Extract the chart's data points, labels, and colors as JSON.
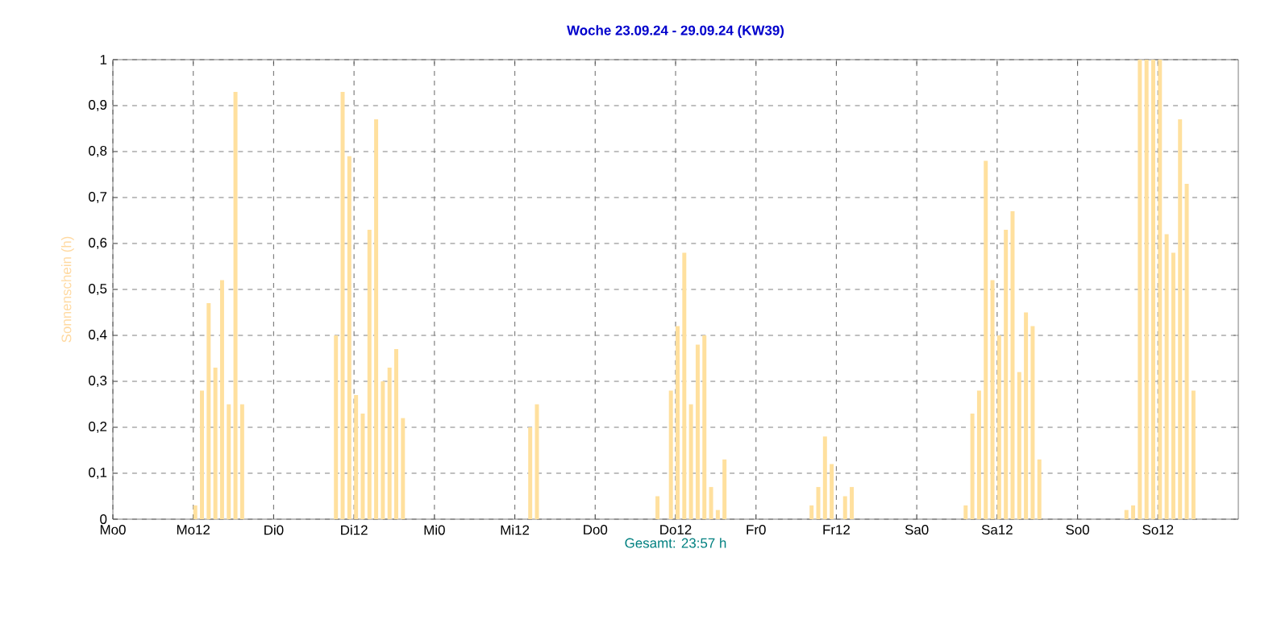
{
  "chart_data": {
    "type": "bar",
    "title": "Woche 23.09.24 - 29.09.24 (KW39)",
    "xlabel": "Gesamt: 23:57 h",
    "ylabel": "Sonnenschein  (h)",
    "categories": [
      "Mo0",
      null,
      null,
      null,
      null,
      null,
      null,
      null,
      null,
      null,
      null,
      null,
      "Mo12",
      null,
      null,
      null,
      null,
      null,
      null,
      null,
      null,
      null,
      null,
      null,
      "Di0",
      null,
      null,
      null,
      null,
      null,
      null,
      null,
      null,
      null,
      null,
      null,
      "Di12",
      null,
      null,
      null,
      null,
      null,
      null,
      null,
      null,
      null,
      null,
      null,
      "Mi0",
      null,
      null,
      null,
      null,
      null,
      null,
      null,
      null,
      null,
      null,
      null,
      "Mi12",
      null,
      null,
      null,
      null,
      null,
      null,
      null,
      null,
      null,
      null,
      null,
      "Do0",
      null,
      null,
      null,
      null,
      null,
      null,
      null,
      null,
      null,
      null,
      null,
      "Do12",
      null,
      null,
      null,
      null,
      null,
      null,
      null,
      null,
      null,
      null,
      null,
      "Fr0",
      null,
      null,
      null,
      null,
      null,
      null,
      null,
      null,
      null,
      null,
      null,
      "Fr12",
      null,
      null,
      null,
      null,
      null,
      null,
      null,
      null,
      null,
      null,
      null,
      "Sa0",
      null,
      null,
      null,
      null,
      null,
      null,
      null,
      null,
      null,
      null,
      null,
      "Sa12",
      null,
      null,
      null,
      null,
      null,
      null,
      null,
      null,
      null,
      null,
      null,
      "So0",
      null,
      null,
      null,
      null,
      null,
      null,
      null,
      null,
      null,
      null,
      null,
      "So12",
      null,
      null,
      null,
      null,
      null,
      null,
      null,
      null,
      null,
      null,
      null
    ],
    "values": [
      0,
      0,
      0,
      0,
      0,
      0,
      0,
      0,
      0,
      0,
      0,
      0,
      0.03,
      0.28,
      0.47,
      0.33,
      0.52,
      0.25,
      0.93,
      0.25,
      0,
      0,
      0,
      0,
      0,
      0,
      0,
      0,
      0,
      0,
      0,
      0,
      0,
      0.4,
      0.93,
      0.79,
      0.27,
      0.23,
      0.63,
      0.87,
      0.3,
      0.33,
      0.37,
      0.22,
      0,
      0,
      0,
      0,
      0,
      0,
      0,
      0,
      0,
      0,
      0,
      0,
      0,
      0,
      0,
      0,
      0,
      0,
      0.2,
      0.25,
      0,
      0,
      0,
      0,
      0,
      0,
      0,
      0,
      0,
      0,
      0,
      0,
      0,
      0,
      0,
      0,
      0,
      0.05,
      0,
      0.28,
      0.42,
      0.58,
      0.25,
      0.38,
      0.4,
      0.07,
      0.02,
      0.13,
      0,
      0,
      0,
      0,
      0,
      0,
      0,
      0,
      0,
      0,
      0,
      0,
      0.03,
      0.07,
      0.18,
      0.12,
      0,
      0.05,
      0.07,
      0,
      0,
      0,
      0,
      0,
      0,
      0,
      0,
      0,
      0,
      0,
      0,
      0,
      0,
      0,
      0,
      0.03,
      0.23,
      0.28,
      0.78,
      0.52,
      0.4,
      0.63,
      0.67,
      0.32,
      0.45,
      0.42,
      0.13,
      0,
      0,
      0,
      0,
      0,
      0,
      0,
      0,
      0,
      0,
      0,
      0,
      0.02,
      0.03,
      1,
      1,
      1,
      1,
      0.62,
      0.58,
      0.87,
      0.73,
      0.28,
      0,
      0,
      0,
      0,
      0,
      0
    ],
    "color": "#ffe09e",
    "ylim": [
      0,
      1
    ],
    "yticks": [
      0,
      {
        "value": 0.1,
        "label": "0,1"
      },
      {
        "value": 0.2,
        "label": "0,2"
      },
      {
        "value": 0.3,
        "label": "0,3"
      },
      {
        "value": 0.4,
        "label": "0,4"
      },
      {
        "value": 0.5,
        "label": "0,5"
      },
      {
        "value": 0.6,
        "label": "0,6"
      },
      {
        "value": 0.7,
        "label": "0,7"
      },
      {
        "value": 0.8,
        "label": "0,8"
      },
      {
        "value": 0.9,
        "label": "0,9"
      },
      1
    ],
    "grid": true
  }
}
